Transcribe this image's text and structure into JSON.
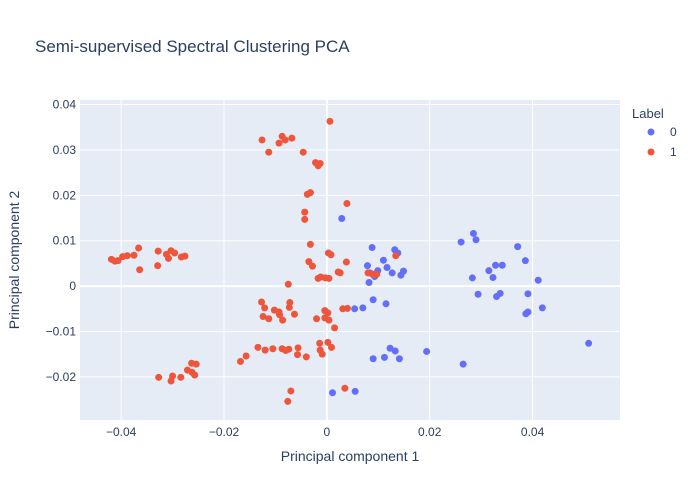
{
  "chart_data": {
    "type": "scatter",
    "title": "Semi-supervised Spectral Clustering PCA",
    "xlabel": "Principal component 1",
    "ylabel": "Principal component 2",
    "xlim": [
      -0.048,
      0.057
    ],
    "ylim": [
      -0.0295,
      0.041
    ],
    "x_ticks": [
      -0.04,
      -0.02,
      0,
      0.02,
      0.04
    ],
    "x_tick_labels": [
      "−0.04",
      "−0.02",
      "0",
      "0.02",
      "0.04"
    ],
    "y_ticks": [
      -0.02,
      -0.01,
      0,
      0.01,
      0.02,
      0.03,
      0.04
    ],
    "y_tick_labels": [
      "−0.02",
      "−0.01",
      "0",
      "0.01",
      "0.02",
      "0.03",
      "0.04"
    ],
    "grid": true,
    "legend_title": "Label",
    "legend_position": "right",
    "series": [
      {
        "name": "0",
        "color": "#636efa",
        "points": [
          [
            0.0029,
            0.0149
          ],
          [
            0.0088,
            0.0085
          ],
          [
            0.0079,
            0.0045
          ],
          [
            0.0099,
            0.0034
          ],
          [
            0.0084,
            0.0029
          ],
          [
            0.0093,
            0.0021
          ],
          [
            0.011,
            0.0057
          ],
          [
            0.0117,
            0.0041
          ],
          [
            0.0127,
            0.0029
          ],
          [
            0.0132,
            0.008
          ],
          [
            0.0138,
            0.0073
          ],
          [
            0.0144,
            0.0024
          ],
          [
            0.0149,
            0.0033
          ],
          [
            0.0082,
            0.0008
          ],
          [
            0.009,
            -0.003
          ],
          [
            0.0054,
            -0.005
          ],
          [
            0.007,
            -0.0048
          ],
          [
            0.0115,
            -0.0039
          ],
          [
            0.0123,
            -0.0137
          ],
          [
            0.0133,
            -0.0143
          ],
          [
            0.0112,
            -0.0157
          ],
          [
            0.009,
            -0.016
          ],
          [
            0.0141,
            -0.016
          ],
          [
            0.0194,
            -0.0144
          ],
          [
            0.0011,
            -0.0235
          ],
          [
            0.0055,
            -0.0232
          ],
          [
            0.0261,
            0.0097
          ],
          [
            0.0285,
            0.0116
          ],
          [
            0.029,
            0.0102
          ],
          [
            0.0315,
            0.0034
          ],
          [
            0.0283,
            0.0018
          ],
          [
            0.0294,
            -0.0018
          ],
          [
            0.0323,
            0.0019
          ],
          [
            0.0328,
            0.0046
          ],
          [
            0.0341,
            0.0046
          ],
          [
            0.033,
            -0.0023
          ],
          [
            0.0337,
            -0.0016
          ],
          [
            0.0371,
            0.0087
          ],
          [
            0.0386,
            0.0056
          ],
          [
            0.0391,
            -0.0017
          ],
          [
            0.0387,
            -0.0061
          ],
          [
            0.0391,
            -0.0057
          ],
          [
            0.0411,
            0.0013
          ],
          [
            0.0419,
            -0.0048
          ],
          [
            0.0509,
            -0.0126
          ],
          [
            0.0265,
            -0.0172
          ]
        ]
      },
      {
        "name": "1",
        "color": "#ef553b",
        "points": [
          [
            0.0006,
            0.0363
          ],
          [
            -0.0126,
            0.0322
          ],
          [
            -0.0093,
            0.0315
          ],
          [
            -0.0087,
            0.033
          ],
          [
            -0.0081,
            0.0322
          ],
          [
            -0.0113,
            0.0295
          ],
          [
            -0.0046,
            0.0295
          ],
          [
            -0.0068,
            0.0326
          ],
          [
            -0.0022,
            0.0272
          ],
          [
            -0.0017,
            0.0265
          ],
          [
            -0.0013,
            0.027
          ],
          [
            -0.0032,
            0.0206
          ],
          [
            -0.0038,
            0.0202
          ],
          [
            0.0039,
            0.0182
          ],
          [
            -0.0043,
            0.0163
          ],
          [
            -0.0043,
            0.0147
          ],
          [
            -0.0032,
            0.0092
          ],
          [
            0.0003,
            0.0073
          ],
          [
            0.0008,
            0.0069
          ],
          [
            -0.0035,
            0.0054
          ],
          [
            -0.0028,
            0.0044
          ],
          [
            0.0038,
            0.0053
          ],
          [
            0.0022,
            0.0031
          ],
          [
            0.0026,
            0.0029
          ],
          [
            -0.0017,
            0.0017
          ],
          [
            -0.0012,
            0.002
          ],
          [
            0.0004,
            0.0017
          ],
          [
            -0.0003,
            0.0018
          ],
          [
            0.008,
            0.0029
          ],
          [
            0.0089,
            0.0026
          ],
          [
            0.0097,
            0.0026
          ],
          [
            0.0134,
            0.0067
          ],
          [
            -0.0075,
            0.0004
          ],
          [
            -0.0072,
            -0.0036
          ],
          [
            -0.0127,
            -0.0035
          ],
          [
            -0.0121,
            -0.0048
          ],
          [
            -0.0102,
            -0.0053
          ],
          [
            -0.0093,
            -0.0057
          ],
          [
            -0.0073,
            -0.0047
          ],
          [
            -0.0063,
            -0.0062
          ],
          [
            -0.0113,
            -0.0072
          ],
          [
            -0.0086,
            -0.0075
          ],
          [
            -0.0124,
            -0.0067
          ],
          [
            -0.0092,
            -0.0063
          ],
          [
            -0.0004,
            -0.0054
          ],
          [
            0.0002,
            -0.0059
          ],
          [
            -0.0004,
            -0.007
          ],
          [
            0.0004,
            -0.0075
          ],
          [
            0.0031,
            -0.005
          ],
          [
            0.004,
            -0.0049
          ],
          [
            -0.002,
            -0.0072
          ],
          [
            -0.0134,
            -0.0135
          ],
          [
            -0.012,
            -0.0141
          ],
          [
            -0.0087,
            -0.0138
          ],
          [
            -0.0074,
            -0.0139
          ],
          [
            -0.0056,
            -0.0136
          ],
          [
            -0.0105,
            -0.0138
          ],
          [
            -0.008,
            -0.0142
          ],
          [
            -0.0013,
            -0.0141
          ],
          [
            -0.0009,
            -0.015
          ],
          [
            -0.0057,
            -0.0151
          ],
          [
            -0.004,
            -0.0156
          ],
          [
            -0.0014,
            -0.0126
          ],
          [
            0.0002,
            -0.0124
          ],
          [
            0.0009,
            -0.0135
          ],
          [
            0.0015,
            -0.0092
          ],
          [
            -0.0157,
            -0.0154
          ],
          [
            -0.0168,
            -0.0166
          ],
          [
            -0.007,
            -0.0231
          ],
          [
            -0.0076,
            -0.0254
          ],
          [
            0.0035,
            -0.0225
          ],
          [
            -0.0419,
            0.0059
          ],
          [
            -0.0412,
            0.0055
          ],
          [
            -0.0406,
            0.0056
          ],
          [
            -0.0397,
            0.0065
          ],
          [
            -0.0388,
            0.0067
          ],
          [
            -0.0375,
            0.0068
          ],
          [
            -0.0366,
            0.0084
          ],
          [
            -0.0364,
            0.0036
          ],
          [
            -0.0328,
            0.0077
          ],
          [
            -0.0312,
            0.007
          ],
          [
            -0.0308,
            0.0061
          ],
          [
            -0.0303,
            0.0078
          ],
          [
            -0.0296,
            0.0073
          ],
          [
            -0.0283,
            0.0064
          ],
          [
            -0.0276,
            0.0066
          ],
          [
            -0.0329,
            0.0045
          ],
          [
            -0.0327,
            -0.0201
          ],
          [
            -0.03,
            -0.0198
          ],
          [
            -0.0303,
            -0.0209
          ],
          [
            -0.0284,
            -0.0201
          ],
          [
            -0.0271,
            -0.0185
          ],
          [
            -0.0263,
            -0.017
          ],
          [
            -0.0262,
            -0.019
          ],
          [
            -0.0257,
            -0.0196
          ],
          [
            -0.0254,
            -0.0172
          ]
        ]
      }
    ]
  }
}
